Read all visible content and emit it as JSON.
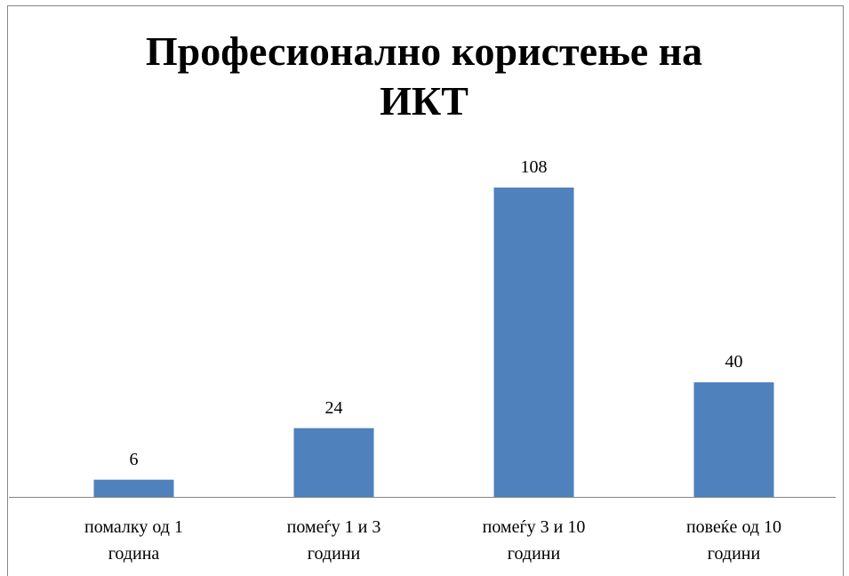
{
  "chart_data": {
    "type": "bar",
    "title": "Професионално користење на ИКТ",
    "categories": [
      "помалку од 1 година",
      "помеѓу 1 и 3 години",
      "помеѓу 3 и 10 години",
      "повеќе од 10 години"
    ],
    "values": [
      6,
      24,
      108,
      40
    ],
    "color": "#4f81bd"
  }
}
